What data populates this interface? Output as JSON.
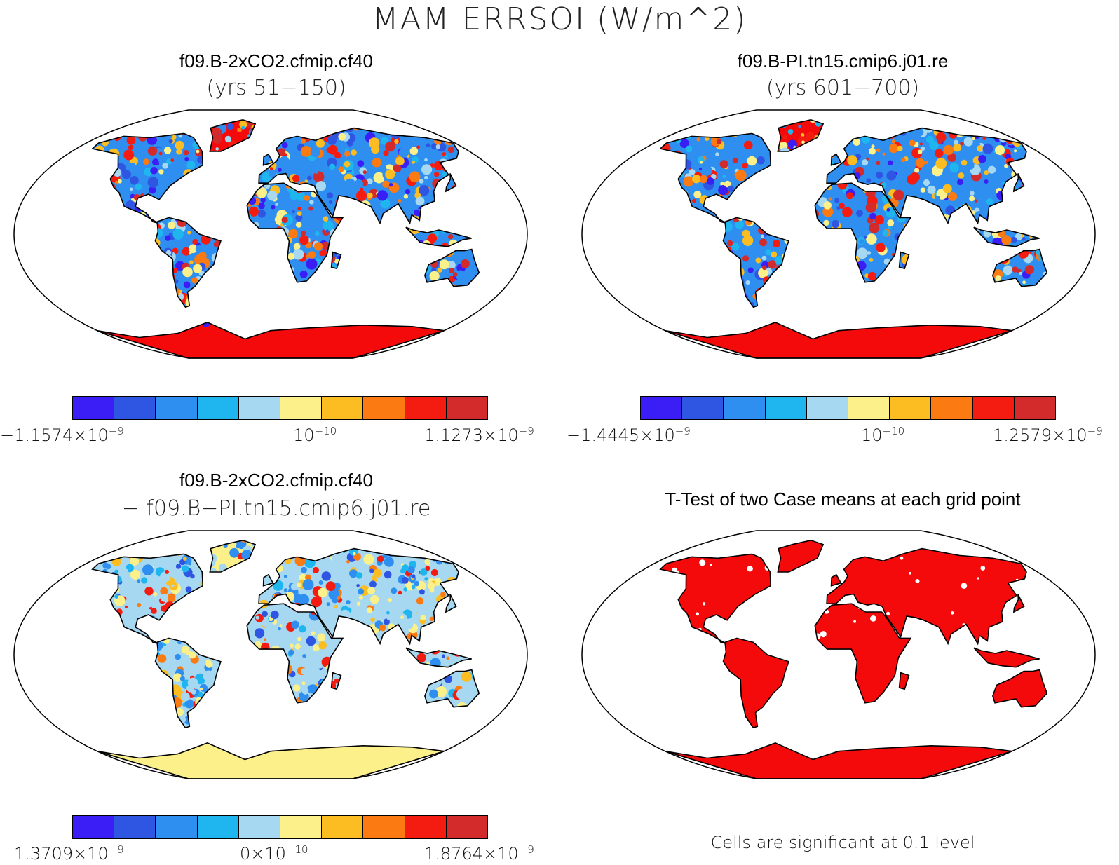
{
  "figure": {
    "title": "MAM ERRSOI (W/m^2)"
  },
  "panels": [
    {
      "title": "f09.B-2xCO2.cfmip.cf40",
      "subtitle": "(yrs 51−150)",
      "colorbar": {
        "colors": [
          "#3a1ef5",
          "#2f55e3",
          "#2f8ff0",
          "#1fb6f0",
          "#a6d8f2",
          "#fbf08a",
          "#fbbd22",
          "#fb7a12",
          "#f41c10",
          "#d32b2b"
        ],
        "min_label": "−1.1574×10",
        "min_exp": "−9",
        "mid_label": "10",
        "mid_exp": "−10",
        "max_label": "1.1273×10",
        "max_exp": "−9"
      }
    },
    {
      "title": "f09.B-PI.tn15.cmip6.j01.re",
      "subtitle": "(yrs 601−700)",
      "colorbar": {
        "colors": [
          "#3a1ef5",
          "#2f55e3",
          "#2f8ff0",
          "#1fb6f0",
          "#a6d8f2",
          "#fbf08a",
          "#fbbd22",
          "#fb7a12",
          "#f41c10",
          "#d32b2b"
        ],
        "min_label": "−1.4445×10",
        "min_exp": "−9",
        "mid_label": "10",
        "mid_exp": "−10",
        "max_label": "1.2579×10",
        "max_exp": "−9"
      }
    },
    {
      "title": "f09.B-2xCO2.cfmip.cf40",
      "subtitle": "− f09.B−PI.tn15.cmip6.j01.re",
      "colorbar": {
        "colors": [
          "#3a1ef5",
          "#2f55e3",
          "#2f8ff0",
          "#1fb6f0",
          "#a6d8f2",
          "#fbf08a",
          "#fbbd22",
          "#fb7a12",
          "#f41c10",
          "#d32b2b"
        ],
        "min_label": "−1.3709×10",
        "min_exp": "−9",
        "mid_label": "0×10",
        "mid_exp": "−10",
        "max_label": "1.8764×10",
        "max_exp": "−9"
      }
    },
    {
      "title": "T-Test of two Case means at each grid point",
      "note": "Cells are significant at 0.1 level",
      "land_color": "#f40a0a"
    }
  ]
}
